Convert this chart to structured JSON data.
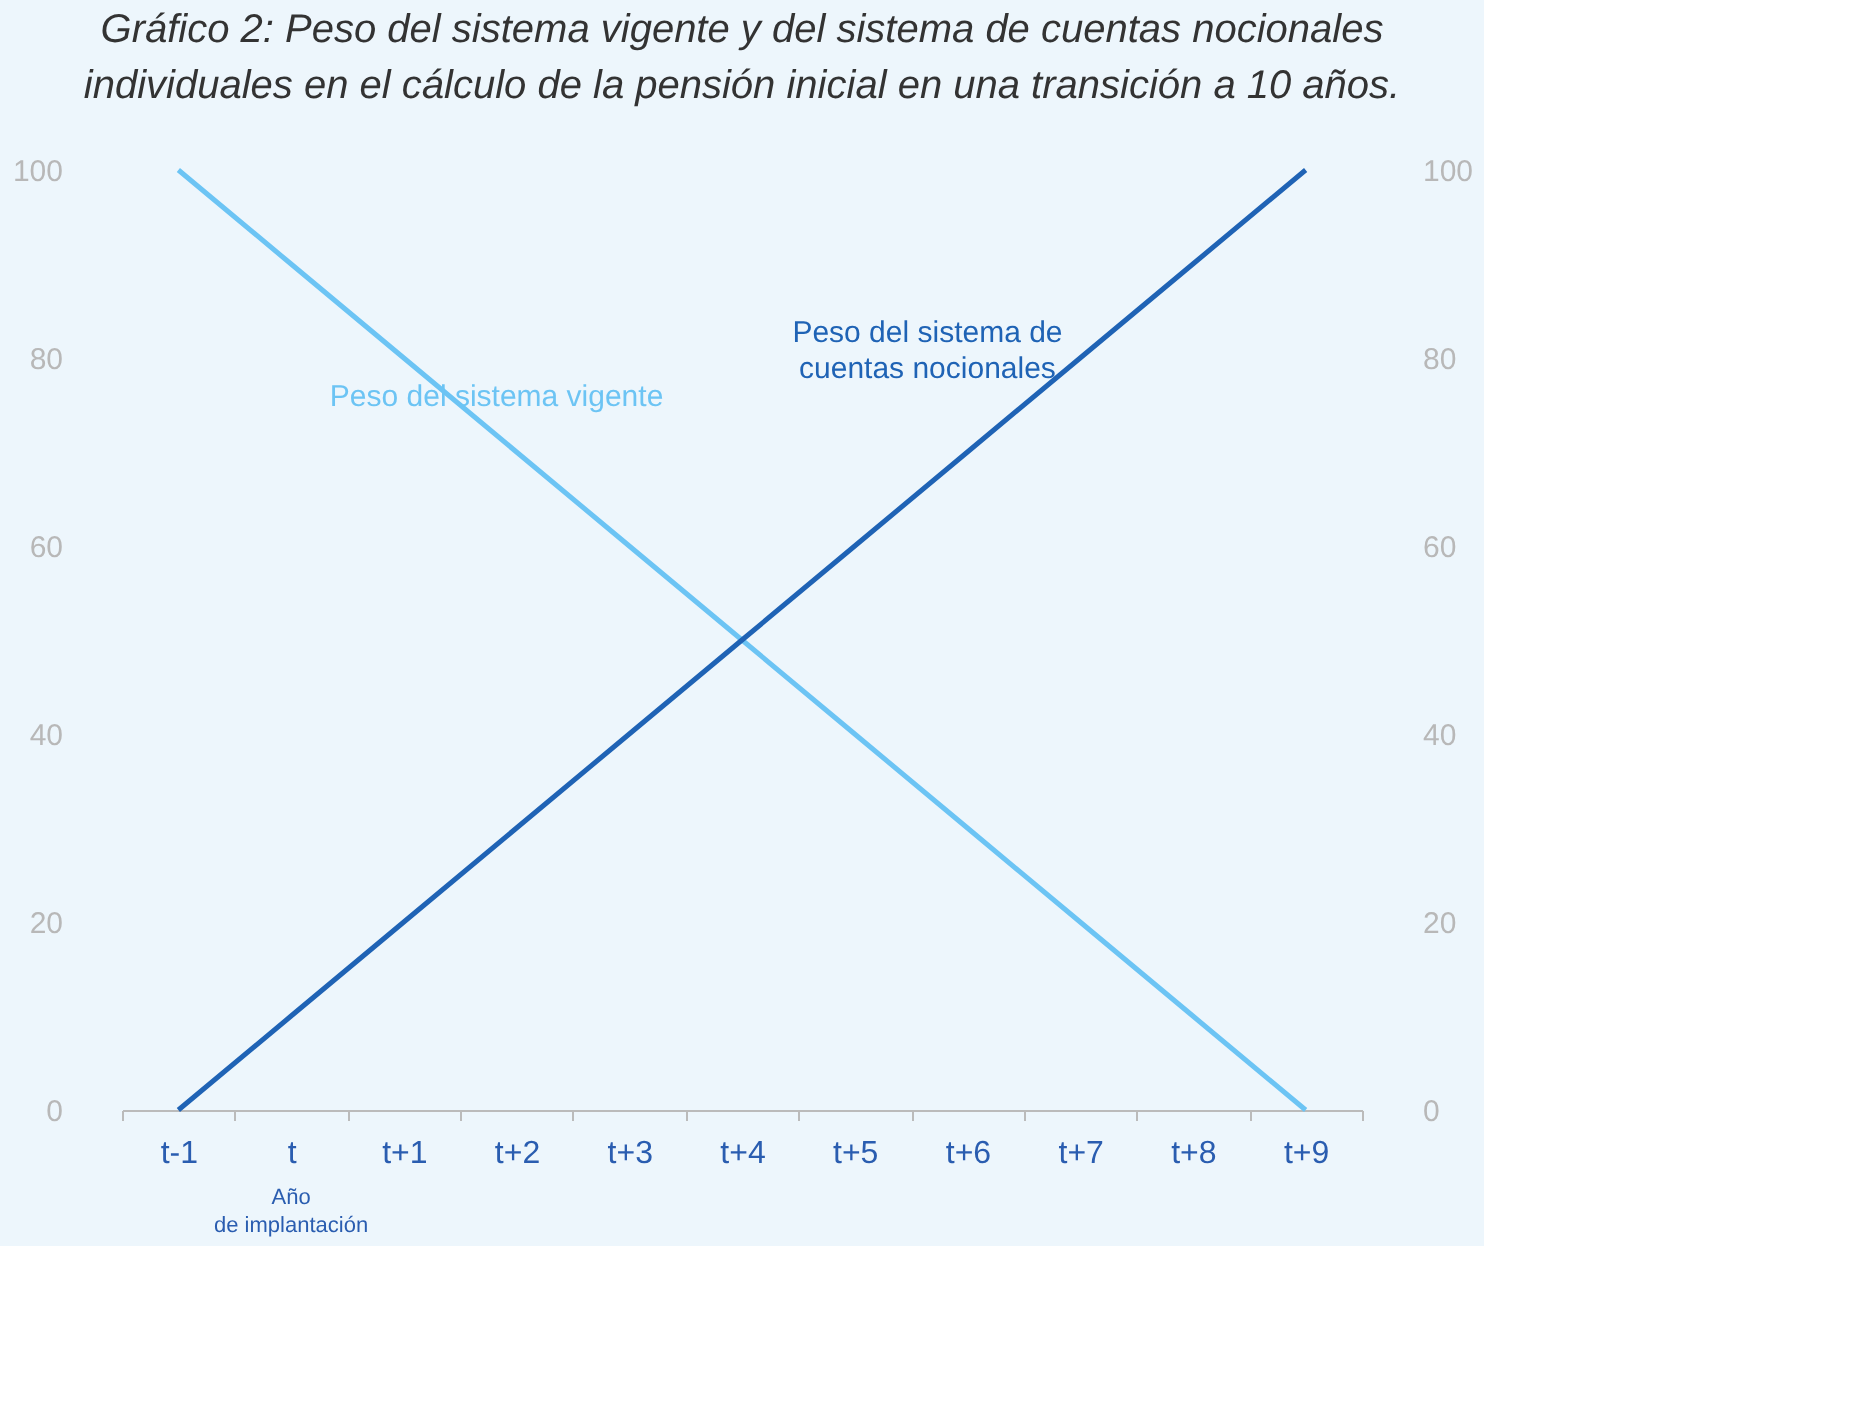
{
  "chart_data": {
    "type": "line",
    "title": [
      "Gráfico 2: Peso del sistema vigente y del sistema de cuentas nocionales",
      "individuales en el cálculo de la pensión inicial en una transición a 10 años."
    ],
    "categories": [
      "t-1",
      "t",
      "t+1",
      "t+2",
      "t+3",
      "t+4",
      "t+5",
      "t+6",
      "t+7",
      "t+8",
      "t+9"
    ],
    "series": [
      {
        "name": "Peso del sistema vigente",
        "color": "#6cc4f4",
        "values": [
          100,
          90,
          80,
          70,
          60,
          50,
          40,
          30,
          20,
          10,
          0
        ]
      },
      {
        "name": "Peso del sistema de cuentas nocionales",
        "color": "#1f63b5",
        "values": [
          0,
          10,
          20,
          30,
          40,
          50,
          60,
          70,
          80,
          90,
          100
        ]
      }
    ],
    "ylim": [
      0,
      100
    ],
    "yticks": [
      0,
      20,
      40,
      60,
      80,
      100
    ],
    "y2lim": [
      0,
      100
    ],
    "y2ticks": [
      0,
      20,
      40,
      60,
      80,
      100
    ],
    "annotations": [
      "Año de implantación"
    ],
    "grid": false,
    "legend": false,
    "marker": "none",
    "line_style": "solid"
  }
}
